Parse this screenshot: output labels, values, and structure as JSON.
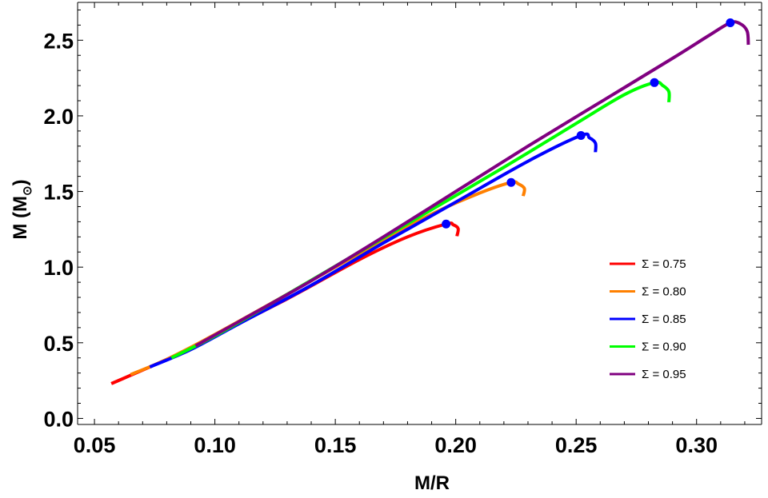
{
  "chart_data": {
    "type": "line",
    "xlabel": "M/R",
    "ylabel": "M (M",
    "ylabel_subscript": "⊙",
    "ylabel_close": ")",
    "xlim": [
      0.043,
      0.327
    ],
    "ylim": [
      -0.04,
      2.75
    ],
    "xticks": [
      {
        "value": 0.05,
        "label": "0.05"
      },
      {
        "value": 0.1,
        "label": "0.10"
      },
      {
        "value": 0.15,
        "label": "0.15"
      },
      {
        "value": 0.2,
        "label": "0.20"
      },
      {
        "value": 0.25,
        "label": "0.25"
      },
      {
        "value": 0.3,
        "label": "0.30"
      }
    ],
    "yticks": [
      {
        "value": 0.0,
        "label": "0.0"
      },
      {
        "value": 0.5,
        "label": "0.5"
      },
      {
        "value": 1.0,
        "label": "1.0"
      },
      {
        "value": 1.5,
        "label": "1.5"
      },
      {
        "value": 2.0,
        "label": "2.0"
      },
      {
        "value": 2.5,
        "label": "2.5"
      }
    ],
    "legend_position": "right",
    "marker_color": "#0000ff",
    "series": [
      {
        "name": "Σ = 0.75",
        "color": "#ff0000",
        "points": [
          [
            0.057,
            0.23
          ],
          [
            0.08,
            0.39
          ],
          [
            0.1,
            0.55
          ],
          [
            0.13,
            0.79
          ],
          [
            0.16,
            1.05
          ],
          [
            0.18,
            1.2
          ],
          [
            0.196,
            1.285
          ],
          [
            0.199,
            1.28
          ],
          [
            0.201,
            1.255
          ],
          [
            0.2005,
            1.205
          ]
        ],
        "max_point": [
          0.196,
          1.285
        ]
      },
      {
        "name": "Σ = 0.80",
        "color": "#ff8000",
        "points": [
          [
            0.065,
            0.29
          ],
          [
            0.08,
            0.39
          ],
          [
            0.1,
            0.555
          ],
          [
            0.13,
            0.82
          ],
          [
            0.16,
            1.09
          ],
          [
            0.19,
            1.35
          ],
          [
            0.21,
            1.49
          ],
          [
            0.223,
            1.56
          ],
          [
            0.226,
            1.55
          ],
          [
            0.2285,
            1.52
          ],
          [
            0.228,
            1.47
          ]
        ],
        "max_point": [
          0.223,
          1.56
        ]
      },
      {
        "name": "Σ = 0.85",
        "color": "#0000ff",
        "points": [
          [
            0.073,
            0.34
          ],
          [
            0.09,
            0.455
          ],
          [
            0.11,
            0.625
          ],
          [
            0.14,
            0.88
          ],
          [
            0.17,
            1.16
          ],
          [
            0.2,
            1.43
          ],
          [
            0.23,
            1.7
          ],
          [
            0.252,
            1.87
          ],
          [
            0.2555,
            1.855
          ],
          [
            0.258,
            1.82
          ],
          [
            0.258,
            1.76
          ]
        ],
        "max_point": [
          0.252,
          1.87
        ]
      },
      {
        "name": "Σ = 0.90",
        "color": "#00ff00",
        "points": [
          [
            0.082,
            0.4
          ],
          [
            0.1,
            0.545
          ],
          [
            0.13,
            0.82
          ],
          [
            0.16,
            1.1
          ],
          [
            0.19,
            1.38
          ],
          [
            0.22,
            1.66
          ],
          [
            0.25,
            1.95
          ],
          [
            0.27,
            2.14
          ],
          [
            0.2825,
            2.22
          ],
          [
            0.286,
            2.2
          ],
          [
            0.2885,
            2.16
          ],
          [
            0.2885,
            2.09
          ]
        ],
        "max_point": [
          0.2825,
          2.22
        ]
      },
      {
        "name": "Σ = 0.95",
        "color": "#800080",
        "points": [
          [
            0.092,
            0.48
          ],
          [
            0.11,
            0.64
          ],
          [
            0.14,
            0.91
          ],
          [
            0.17,
            1.2
          ],
          [
            0.2,
            1.5
          ],
          [
            0.23,
            1.8
          ],
          [
            0.26,
            2.09
          ],
          [
            0.29,
            2.38
          ],
          [
            0.305,
            2.53
          ],
          [
            0.314,
            2.615
          ],
          [
            0.318,
            2.61
          ],
          [
            0.321,
            2.56
          ],
          [
            0.3215,
            2.47
          ]
        ],
        "max_point": [
          0.314,
          2.615
        ]
      }
    ]
  }
}
